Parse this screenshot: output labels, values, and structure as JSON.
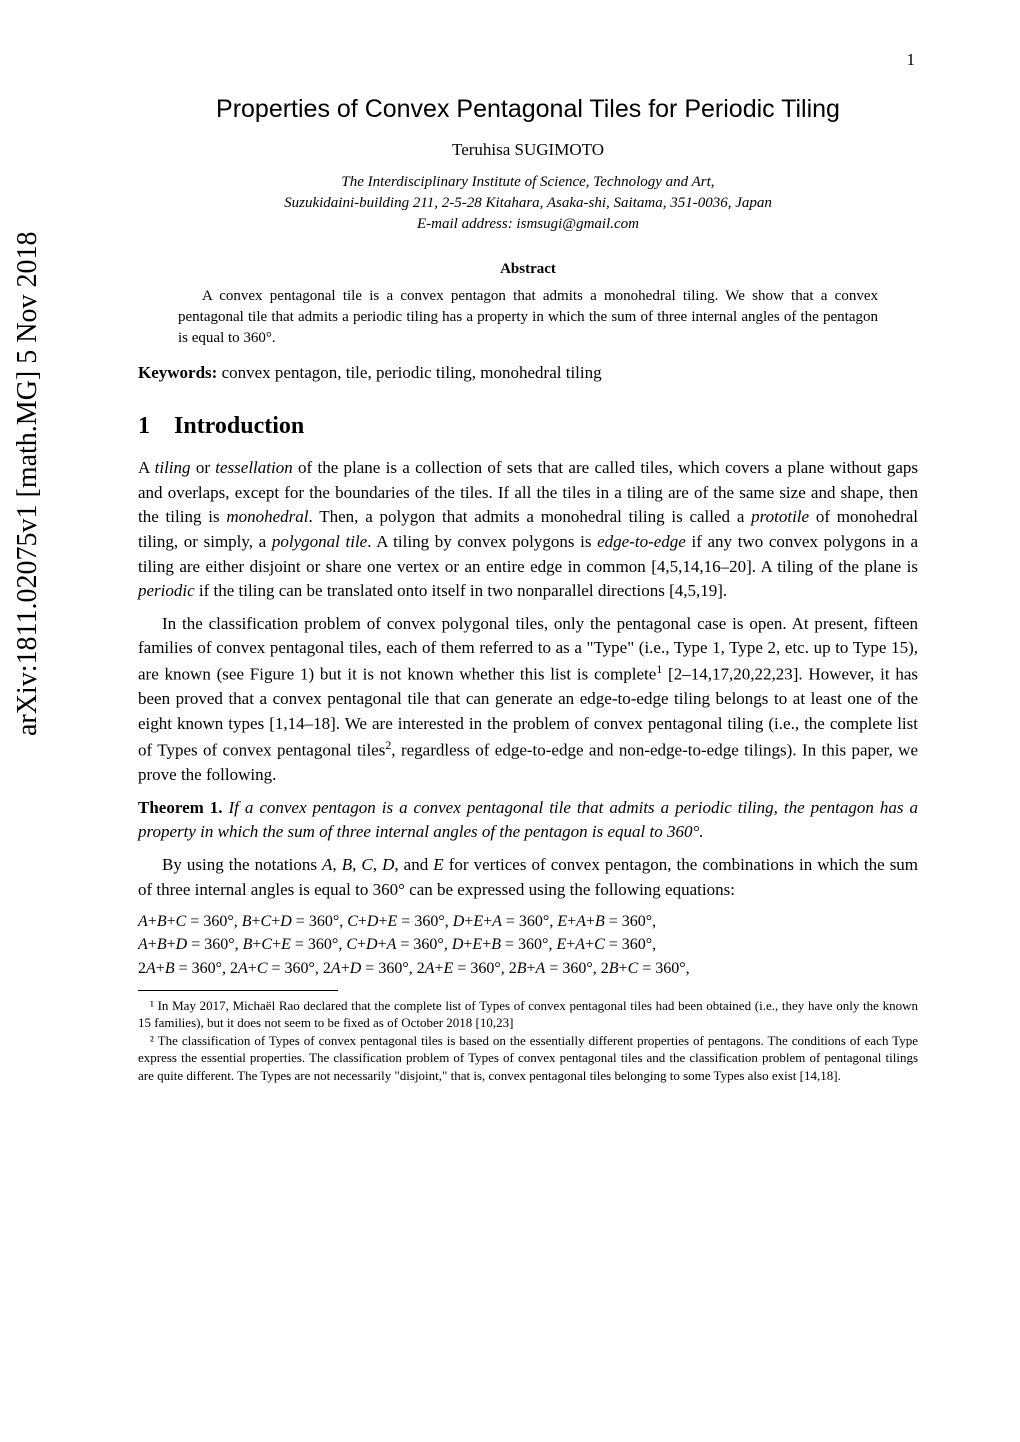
{
  "page_number": "1",
  "arxiv_stamp": "arXiv:1811.02075v1  [math.MG]  5 Nov 2018",
  "title": "Properties of Convex Pentagonal Tiles for Periodic Tiling",
  "author": "Teruhisa SUGIMOTO",
  "affiliation_line1": "The Interdisciplinary Institute of Science, Technology and Art,",
  "affiliation_line2": "Suzukidaini-building 211, 2-5-28 Kitahara, Asaka-shi, Saitama, 351-0036, Japan",
  "affiliation_line3": "E-mail address: ismsugi@gmail.com",
  "abstract_heading": "Abstract",
  "abstract_body": "A convex pentagonal tile is a convex pentagon that admits a monohedral tiling. We show that a convex pentagonal tile that admits a periodic tiling has a property in which the sum of three internal angles of the pentagon is equal to 360°.",
  "keywords_label": "Keywords:",
  "keywords_text": " convex pentagon, tile, periodic tiling, monohedral tiling",
  "section1_number": "1",
  "section1_title": "Introduction",
  "para1": "A tiling or tessellation of the plane is a collection of sets that are called tiles, which covers a plane without gaps and overlaps, except for the boundaries of the tiles. If all the tiles in a tiling are of the same size and shape, then the tiling is monohedral. Then, a polygon that admits a monohedral tiling is called a prototile of monohedral tiling, or simply, a polygonal tile. A tiling by convex polygons is edge-to-edge if any two convex polygons in a tiling are either disjoint or share one vertex or an entire edge in common [4,5,14,16–20]. A tiling of the plane is periodic if the tiling can be translated onto itself in two nonparallel directions [4,5,19].",
  "para2": "In the classification problem of convex polygonal tiles, only the pentagonal case is open. At present, fifteen families of convex pentagonal tiles, each of them referred to as a \"Type\" (i.e., Type 1, Type 2, etc. up to Type 15), are known (see Figure 1) but it is not known whether this list is complete¹ [2–14,17,20,22,23]. However, it has been proved that a convex pentagonal tile that can generate an edge-to-edge tiling belongs to at least one of the eight known types [1,14–18]. We are interested in the problem of convex pentagonal tiling (i.e., the complete list of Types of convex pentagonal tiles², regardless of edge-to-edge and non-edge-to-edge tilings). In this paper, we prove the following.",
  "theorem_label": "Theorem 1.",
  "theorem_body": " If a convex pentagon is a convex pentagonal tile that admits a periodic tiling, the pentagon has a property in which the sum of three internal angles of the pentagon is equal to 360°.",
  "para3": "By using the notations A, B, C, D, and E for vertices of convex pentagon, the combinations in which the sum of three internal angles is equal to 360° can be expressed using the following equations:",
  "eq_line1": "A+B+C = 360°, B+C+D = 360°, C+D+E = 360°, D+E+A = 360°, E+A+B = 360°,",
  "eq_line2": "A+B+D = 360°, B+C+E = 360°, C+D+A = 360°, D+E+B = 360°, E+A+C = 360°,",
  "eq_line3": "2A+B = 360°, 2A+C = 360°, 2A+D = 360°, 2A+E = 360°, 2B+A = 360°, 2B+C = 360°,",
  "footnote1": "¹ In May 2017, Michaël Rao declared that the complete list of Types of convex pentagonal tiles had been obtained (i.e., they have only the known 15 families), but it does not seem to be fixed as of October 2018 [10,23]",
  "footnote2": "² The classification of Types of convex pentagonal tiles is based on the essentially different properties of pentagons. The conditions of each Type express the essential properties. The classification problem of Types of convex pentagonal tiles and the classification problem of pentagonal tilings are quite different. The Types are not necessarily \"disjoint,\" that is, convex pentagonal tiles belonging to some Types also exist [14,18]."
}
